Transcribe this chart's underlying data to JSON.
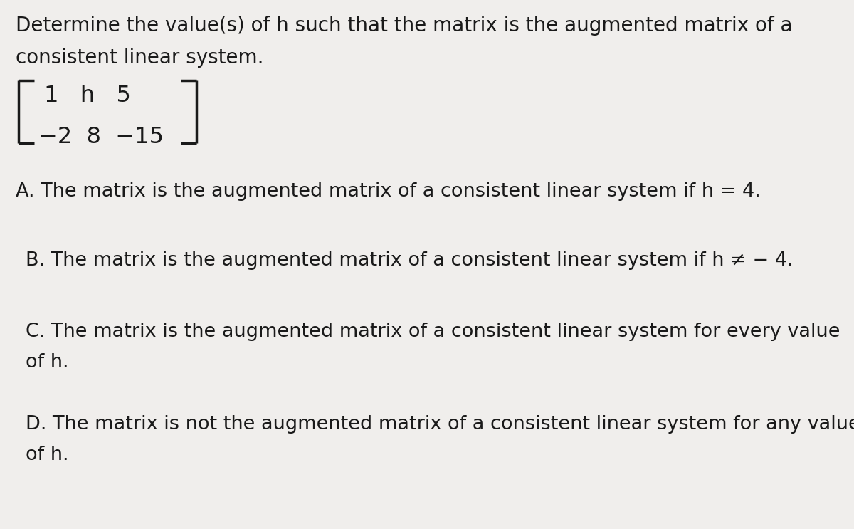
{
  "background_color": "#f0eeec",
  "text_color": "#1a1a1a",
  "title_line1": "Determine the value(s) of h such that the matrix is the augmented matrix of a",
  "title_line2": "consistent linear system.",
  "matrix_row1": "1   h   5",
  "matrix_row2": "−2  8  −15",
  "option_A": "A. The matrix is the augmented matrix of a consistent linear system if h = 4.",
  "option_B": "B. The matrix is the augmented matrix of a consistent linear system if h ≠ − 4.",
  "option_C1": "C. The matrix is the augmented matrix of a consistent linear system for every value",
  "option_C2": "of h.",
  "option_D1": "D. The matrix is not the augmented matrix of a consistent linear system for any value",
  "option_D2": "of h.",
  "fs_title": 20,
  "fs_matrix": 23,
  "fs_option": 19.5,
  "figwidth": 12.0,
  "figheight": 7.43,
  "dpi": 100
}
